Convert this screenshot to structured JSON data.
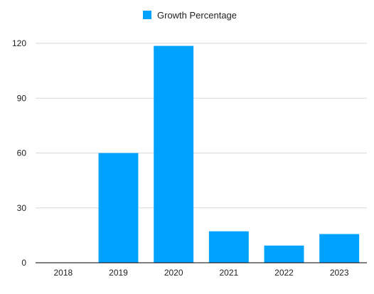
{
  "chart_data": {
    "type": "bar",
    "categories": [
      "2018",
      "2019",
      "2020",
      "2021",
      "2022",
      "2023"
    ],
    "series": [
      {
        "name": "Growth Percentage",
        "values": [
          0,
          60,
          118.6,
          17.2,
          9.4,
          15.7
        ],
        "color": "#00A2FF"
      }
    ],
    "ylim": [
      0,
      120
    ],
    "y_ticks": [
      0,
      30,
      60,
      90,
      120
    ],
    "grid": true,
    "legend_position": "top-center"
  }
}
